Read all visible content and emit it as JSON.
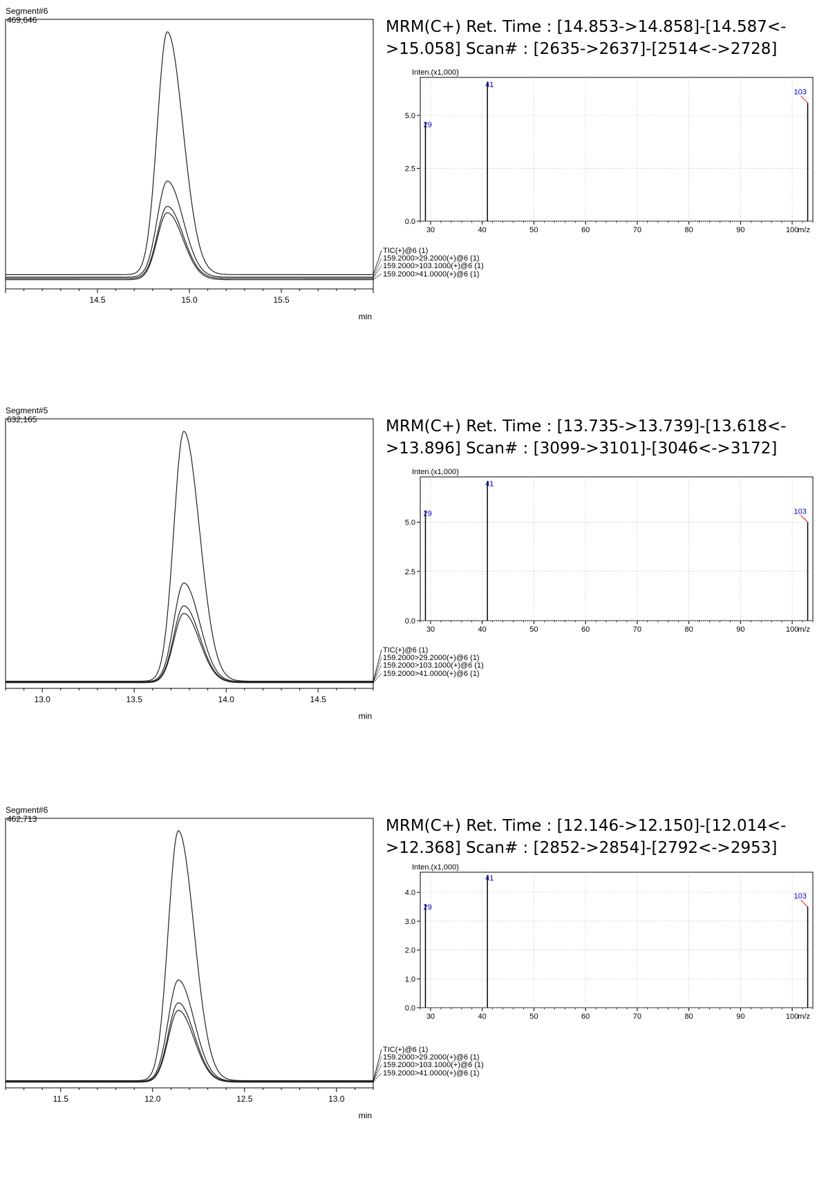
{
  "chart_data": [
    {
      "chromatogram": {
        "type": "line",
        "segment": "Segment#6",
        "max_intensity": "469,646",
        "x_unit": "min",
        "xlim": [
          14.0,
          16.0
        ],
        "xticks": [
          "14.5",
          "15.0",
          "15.5"
        ],
        "legend": [
          "TIC(+)@6 (1)",
          "159.2000>29.2000(+)@6 (1)",
          "159.2000>103.1000(+)@6 (1)",
          "159.2000>41.0000(+)@6 (1)"
        ],
        "peak_rt": 14.88,
        "series": [
          {
            "name": "TIC(+)@6 (1)",
            "baseline": 0.04,
            "apex": 1.0
          },
          {
            "name": "159.2000>29.2000(+)@6 (1)",
            "baseline": 0.03,
            "apex": 0.41
          },
          {
            "name": "159.2000>103.1000(+)@6 (1)",
            "baseline": 0.025,
            "apex": 0.31
          },
          {
            "name": "159.2000>41.0000(+)@6 (1)",
            "baseline": 0.02,
            "apex": 0.285
          }
        ]
      },
      "spectrum": {
        "type": "bar",
        "header_line1": "MRM(C+)    Ret. Time : [14.853->14.858]-[14.587<-",
        "header_line2": ">15.058]     Scan# : [2635->2637]-[2514<->2728]",
        "ylabel": "Inten.(x1,000)",
        "x_unit": "m/z",
        "xlim": [
          28,
          104
        ],
        "ylim": [
          0,
          6.8
        ],
        "xticks": [
          30,
          40,
          50,
          60,
          70,
          80,
          90,
          100
        ],
        "yticks": [
          "0.0",
          "2.5",
          "5.0"
        ],
        "peaks": [
          {
            "mz": 29,
            "intensity": 4.7,
            "label": "29"
          },
          {
            "mz": 41,
            "intensity": 6.6,
            "label": "41"
          },
          {
            "mz": 103,
            "intensity": 5.6,
            "label": "103"
          }
        ]
      }
    },
    {
      "chromatogram": {
        "type": "line",
        "segment": "Segment#5",
        "max_intensity": "632,165",
        "x_unit": "min",
        "xlim": [
          12.8,
          14.8
        ],
        "xticks": [
          "13.0",
          "13.5",
          "14.0",
          "14.5"
        ],
        "legend": [
          "TIC(+)@6 (1)",
          "159.2000>29.2000(+)@6 (1)",
          "159.2000>103.1000(+)@6 (1)",
          "159.2000>41.0000(+)@6 (1)"
        ],
        "peak_rt": 13.77,
        "series": [
          {
            "name": "TIC(+)@6 (1)",
            "baseline": 0.012,
            "apex": 1.0
          },
          {
            "name": "159.2000>29.2000(+)@6 (1)",
            "baseline": 0.01,
            "apex": 0.4
          },
          {
            "name": "159.2000>103.1000(+)@6 (1)",
            "baseline": 0.008,
            "apex": 0.31
          },
          {
            "name": "159.2000>41.0000(+)@6 (1)",
            "baseline": 0.006,
            "apex": 0.28
          }
        ]
      },
      "spectrum": {
        "type": "bar",
        "header_line1": "MRM(C+)    Ret. Time : [13.735->13.739]-[13.618<-",
        "header_line2": ">13.896]   Scan# : [3099->3101]-[3046<->3172]",
        "ylabel": "Inten.(x1,000)",
        "x_unit": "m/z",
        "xlim": [
          28,
          104
        ],
        "ylim": [
          0,
          7.3
        ],
        "xticks": [
          30,
          40,
          50,
          60,
          70,
          80,
          90,
          100
        ],
        "yticks": [
          "0.0",
          "2.5",
          "5.0"
        ],
        "peaks": [
          {
            "mz": 29,
            "intensity": 5.6,
            "label": "29"
          },
          {
            "mz": 41,
            "intensity": 7.1,
            "label": "41"
          },
          {
            "mz": 103,
            "intensity": 5.0,
            "label": "103"
          }
        ]
      }
    },
    {
      "chromatogram": {
        "type": "line",
        "segment": "Segment#6",
        "max_intensity": "462,713",
        "x_unit": "min",
        "xlim": [
          11.2,
          13.2
        ],
        "xticks": [
          "11.5",
          "12.0",
          "12.5",
          "13.0"
        ],
        "legend": [
          "TIC(+)@6 (1)",
          "159.2000>29.2000(+)@6 (1)",
          "159.2000>103.1000(+)@6 (1)",
          "159.2000>41.0000(+)@6 (1)"
        ],
        "peak_rt": 12.14,
        "series": [
          {
            "name": "TIC(+)@6 (1)",
            "baseline": 0.012,
            "apex": 1.0
          },
          {
            "name": "159.2000>29.2000(+)@6 (1)",
            "baseline": 0.01,
            "apex": 0.41
          },
          {
            "name": "159.2000>103.1000(+)@6 (1)",
            "baseline": 0.008,
            "apex": 0.32
          },
          {
            "name": "159.2000>41.0000(+)@6 (1)",
            "baseline": 0.006,
            "apex": 0.29
          }
        ]
      },
      "spectrum": {
        "type": "bar",
        "header_line1": "MRM(C+)    Ret. Time : [12.146->12.150]-[12.014<-",
        "header_line2": ">12.368]   Scan# : [2852->2854]-[2792<->2953]",
        "ylabel": "Inten.(x1,000)",
        "x_unit": "m/z",
        "xlim": [
          28,
          104
        ],
        "ylim": [
          0,
          4.7
        ],
        "xticks": [
          30,
          40,
          50,
          60,
          70,
          80,
          90,
          100
        ],
        "yticks": [
          "0.0",
          "1.0",
          "2.0",
          "3.0",
          "4.0"
        ],
        "peaks": [
          {
            "mz": 29,
            "intensity": 3.6,
            "label": "29"
          },
          {
            "mz": 41,
            "intensity": 4.6,
            "label": "41"
          },
          {
            "mz": 103,
            "intensity": 3.5,
            "label": "103"
          }
        ]
      }
    }
  ]
}
